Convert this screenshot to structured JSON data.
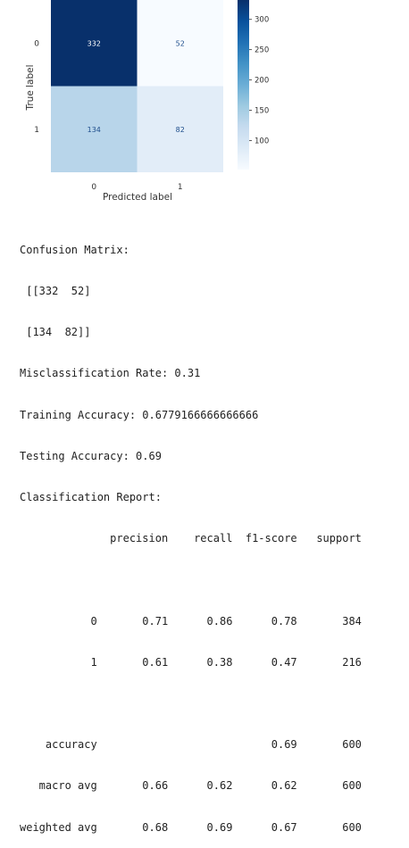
{
  "chart_data": {
    "type": "heatmap",
    "title": "",
    "xlabel": "Predicted label",
    "ylabel": "True label",
    "x_categories": [
      "0",
      "1"
    ],
    "y_categories": [
      "0",
      "1"
    ],
    "values": [
      [
        332,
        52
      ],
      [
        134,
        82
      ]
    ],
    "colormap": "Blues",
    "colorbar": {
      "min": 52,
      "max": 332,
      "ticks": [
        100,
        150,
        200,
        250,
        300
      ],
      "tick_labels": [
        "100",
        "150",
        "200",
        "250",
        "300"
      ]
    },
    "colors": {
      "dark_text": "#1f4e8c",
      "light_text": "#ffffff"
    }
  },
  "output": {
    "lines": [
      "Confusion Matrix:",
      " [[332  52]",
      " [134  82]]",
      "Misclassification Rate: 0.31",
      "Training Accuracy: 0.6779166666666666",
      "Testing Accuracy: 0.69",
      "Classification Report:",
      "              precision    recall  f1-score   support",
      "",
      "           0       0.71      0.86      0.78       384",
      "           1       0.61      0.38      0.47       216",
      "",
      "    accuracy                           0.69       600",
      "   macro avg       0.66      0.62      0.62       600",
      "weighted avg       0.68      0.69      0.67       600"
    ]
  }
}
